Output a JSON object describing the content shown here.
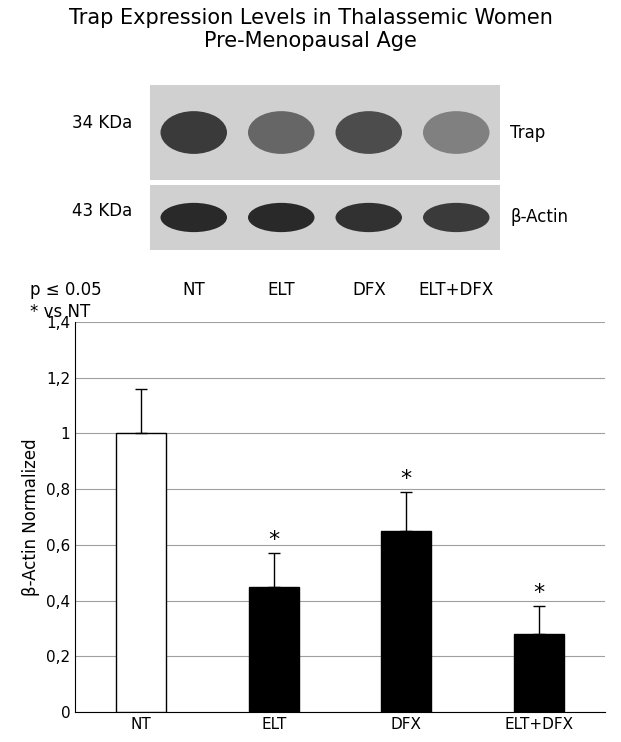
{
  "chart_data": {
    "type": "bar",
    "title": "Trap Expression Levels in Thalassemic Women Pre-Menopausal Age",
    "y_label": "β-Actin Normalized",
    "categories": [
      "NT",
      "ELT",
      "DFX",
      "ELT+DFX"
    ],
    "values": [
      1.0,
      0.45,
      0.65,
      0.28
    ],
    "error": [
      0.16,
      0.12,
      0.14,
      0.1
    ],
    "colors": [
      "#ffffff",
      "#000000",
      "#000000",
      "#000000"
    ],
    "ylim": [
      0,
      1.4
    ],
    "yticks": [
      0,
      {
        "value": 0.2,
        "label": "0,2"
      },
      {
        "value": 0.4,
        "label": "0,4"
      },
      {
        "value": 0.6,
        "label": "0,6"
      },
      {
        "value": 0.8,
        "label": "0,8"
      },
      1,
      {
        "value": 1.2,
        "label": "1,2"
      },
      {
        "value": 1.4,
        "label": "1,4"
      }
    ],
    "grid": true,
    "annotations": [
      {
        "category": "ELT",
        "text": "*"
      },
      {
        "category": "DFX",
        "text": "*"
      },
      {
        "category": "ELT+DFX",
        "text": "*"
      }
    ],
    "notes": [
      "p ≤ 0.05",
      "* vs NT"
    ],
    "blot": [
      {
        "size": "34 KDa",
        "name": "Trap"
      },
      {
        "size": "43 KDa",
        "name": "β-Actin"
      }
    ]
  }
}
